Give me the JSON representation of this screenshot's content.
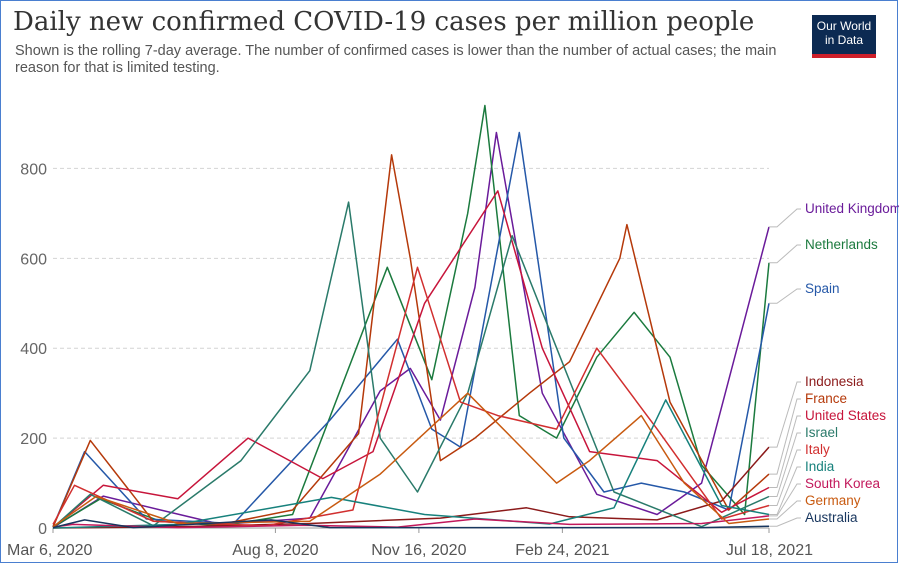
{
  "header": {
    "title": "Daily new confirmed COVID-19 cases per million people",
    "subtitle": "Shown is the rolling 7-day average. The number of confirmed cases is lower than the number of actual cases; the main reason for that is limited testing.",
    "logo_line1": "Our World",
    "logo_line2": "in Data"
  },
  "chart_data": {
    "type": "line",
    "title": "Daily new confirmed COVID-19 cases per million people",
    "ylim": [
      0,
      950
    ],
    "yticks": [
      0,
      200,
      400,
      600,
      800
    ],
    "xlim": [
      "2020-03-06",
      "2021-07-18"
    ],
    "xtick_labels": [
      "Mar 6, 2020",
      "Aug 8, 2020",
      "Nov 16, 2020",
      "Feb 24, 2021",
      "Jul 18, 2021"
    ],
    "xtick_dates": [
      "2020-03-06",
      "2020-08-08",
      "2020-11-16",
      "2021-02-24",
      "2021-07-18"
    ],
    "grid": true,
    "legend": "right",
    "series": [
      {
        "name": "United Kingdom",
        "color": "#6a1b9a",
        "x": [
          "2020-03-06",
          "2020-04-10",
          "2020-05-20",
          "2020-07-01",
          "2020-09-01",
          "2020-10-20",
          "2020-11-10",
          "2020-12-01",
          "2020-12-25",
          "2021-01-09",
          "2021-02-10",
          "2021-03-20",
          "2021-05-01",
          "2021-06-01",
          "2021-07-18"
        ],
        "y": [
          1,
          71,
          40,
          8,
          22,
          305,
          355,
          240,
          535,
          880,
          300,
          75,
          30,
          100,
          670
        ]
      },
      {
        "name": "Netherlands",
        "color": "#1b7a3e",
        "x": [
          "2020-03-06",
          "2020-04-08",
          "2020-05-20",
          "2020-07-01",
          "2020-08-20",
          "2020-10-25",
          "2020-11-25",
          "2020-12-20",
          "2021-01-01",
          "2021-01-25",
          "2021-02-20",
          "2021-03-20",
          "2021-04-15",
          "2021-05-10",
          "2021-06-01",
          "2021-07-01",
          "2021-07-18"
        ],
        "y": [
          2,
          65,
          15,
          5,
          30,
          580,
          330,
          700,
          940,
          250,
          200,
          380,
          480,
          380,
          140,
          30,
          590
        ]
      },
      {
        "name": "Spain",
        "color": "#2558a8",
        "x": [
          "2020-03-06",
          "2020-03-28",
          "2020-05-10",
          "2020-07-10",
          "2020-09-15",
          "2020-11-01",
          "2020-11-25",
          "2020-12-15",
          "2021-01-25",
          "2021-02-25",
          "2021-03-25",
          "2021-04-20",
          "2021-05-20",
          "2021-06-20",
          "2021-07-18"
        ],
        "y": [
          3,
          170,
          20,
          10,
          240,
          420,
          220,
          180,
          880,
          200,
          80,
          100,
          80,
          40,
          500
        ]
      },
      {
        "name": "Indonesia",
        "color": "#8b1a1a",
        "x": [
          "2020-03-06",
          "2020-06-01",
          "2020-09-01",
          "2020-12-01",
          "2021-01-30",
          "2021-03-01",
          "2021-05-01",
          "2021-06-15",
          "2021-07-18"
        ],
        "y": [
          0,
          3,
          10,
          22,
          45,
          25,
          18,
          60,
          180
        ]
      },
      {
        "name": "France",
        "color": "#b5390a",
        "x": [
          "2020-03-06",
          "2020-04-01",
          "2020-05-15",
          "2020-07-01",
          "2020-08-20",
          "2020-10-05",
          "2020-10-28",
          "2020-11-10",
          "2020-12-01",
          "2020-12-25",
          "2021-02-01",
          "2021-03-01",
          "2021-04-05",
          "2021-04-10",
          "2021-05-10",
          "2021-06-20",
          "2021-07-18"
        ],
        "y": [
          2,
          195,
          15,
          8,
          40,
          210,
          830,
          600,
          150,
          200,
          300,
          370,
          600,
          675,
          280,
          40,
          120
        ]
      },
      {
        "name": "United States",
        "color": "#c7153b",
        "x": [
          "2020-03-06",
          "2020-04-10",
          "2020-06-01",
          "2020-07-20",
          "2020-09-10",
          "2020-10-15",
          "2020-11-20",
          "2021-01-10",
          "2021-02-10",
          "2021-03-15",
          "2021-05-01",
          "2021-06-15",
          "2021-07-18"
        ],
        "y": [
          1,
          95,
          65,
          200,
          110,
          170,
          500,
          750,
          400,
          170,
          150,
          35,
          90
        ]
      },
      {
        "name": "Israel",
        "color": "#2a7a6a",
        "x": [
          "2020-03-06",
          "2020-04-01",
          "2020-05-15",
          "2020-07-15",
          "2020-09-01",
          "2020-09-28",
          "2020-10-20",
          "2020-11-15",
          "2020-12-20",
          "2021-01-20",
          "2021-02-25",
          "2021-04-01",
          "2021-06-01",
          "2021-07-18"
        ],
        "y": [
          1,
          75,
          5,
          150,
          350,
          725,
          200,
          80,
          300,
          650,
          360,
          80,
          3,
          70
        ]
      },
      {
        "name": "Italy",
        "color": "#d12f2f",
        "x": [
          "2020-03-06",
          "2020-03-21",
          "2020-05-15",
          "2020-08-01",
          "2020-10-01",
          "2020-11-15",
          "2020-12-15",
          "2021-01-10",
          "2021-02-20",
          "2021-03-20",
          "2021-05-01",
          "2021-06-15",
          "2021-07-18"
        ],
        "y": [
          8,
          95,
          15,
          5,
          40,
          580,
          280,
          250,
          220,
          400,
          220,
          20,
          50
        ]
      },
      {
        "name": "India",
        "color": "#17817c",
        "x": [
          "2020-03-06",
          "2020-06-01",
          "2020-09-16",
          "2020-11-20",
          "2021-02-15",
          "2021-04-01",
          "2021-05-07",
          "2021-06-15",
          "2021-07-18"
        ],
        "y": [
          0,
          8,
          68,
          30,
          9,
          45,
          285,
          50,
          30
        ]
      },
      {
        "name": "South Korea",
        "color": "#c2185b",
        "x": [
          "2020-03-06",
          "2020-03-20",
          "2020-06-01",
          "2020-08-28",
          "2020-11-01",
          "2020-12-25",
          "2021-03-01",
          "2021-06-01",
          "2021-07-18"
        ],
        "y": [
          2,
          8,
          1,
          6,
          2,
          20,
          8,
          10,
          27
        ]
      },
      {
        "name": "Germany",
        "color": "#c85a10",
        "x": [
          "2020-03-06",
          "2020-04-05",
          "2020-06-01",
          "2020-09-01",
          "2020-10-20",
          "2020-12-20",
          "2021-01-20",
          "2021-02-20",
          "2021-03-15",
          "2021-04-20",
          "2021-05-20",
          "2021-06-20",
          "2021-07-18"
        ],
        "y": [
          3,
          70,
          10,
          15,
          120,
          300,
          200,
          100,
          150,
          250,
          100,
          10,
          20
        ]
      },
      {
        "name": "Australia",
        "color": "#18365e",
        "x": [
          "2020-03-06",
          "2020-03-28",
          "2020-05-01",
          "2020-08-05",
          "2020-09-15",
          "2021-01-01",
          "2021-06-01",
          "2021-07-18"
        ],
        "y": [
          1,
          18,
          1,
          18,
          1,
          1,
          1,
          4
        ]
      }
    ]
  }
}
